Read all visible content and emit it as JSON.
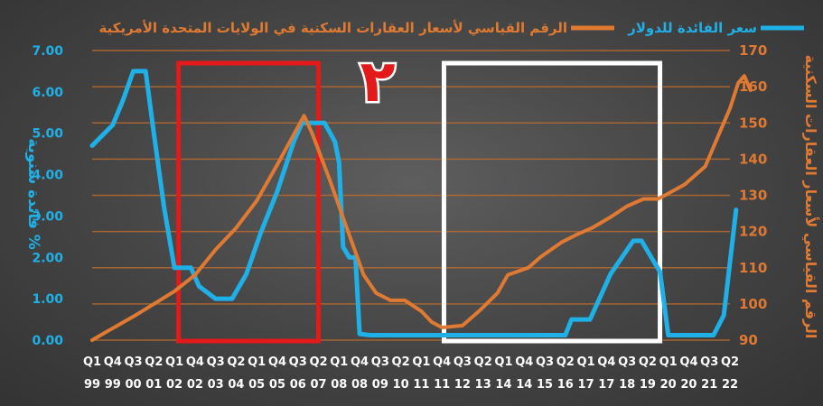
{
  "chart_data": {
    "type": "line",
    "legend": [
      {
        "label": "الرقم القياسي لأسعار العقارات السكنية في الولايات المتحدة الأمريكية",
        "color": "#e07a32"
      },
      {
        "label": "سعر الفائدة للدولار",
        "color": "#1fb0e8"
      }
    ],
    "annotation": "٢",
    "ylabel_left": "فائدة سنوية %",
    "ylabel_right": "الرقم القياسي لأسعار العقارات السكنية",
    "yticks_left": [
      "0.00",
      "1.00",
      "2.00",
      "3.00",
      "4.00",
      "5.00",
      "6.00",
      "7.00"
    ],
    "yticks_right": [
      "90",
      "100",
      "110",
      "120",
      "130",
      "140",
      "150",
      "160",
      "170"
    ],
    "ylim_left": [
      0,
      7
    ],
    "ylim_right": [
      90,
      170
    ],
    "x_tick_labels": [
      {
        "q": "Q1",
        "y": "99"
      },
      {
        "q": "Q4",
        "y": "99"
      },
      {
        "q": "Q3",
        "y": "00"
      },
      {
        "q": "Q2",
        "y": "01"
      },
      {
        "q": "Q1",
        "y": "02"
      },
      {
        "q": "Q4",
        "y": "02"
      },
      {
        "q": "Q3",
        "y": "03"
      },
      {
        "q": "Q2",
        "y": "04"
      },
      {
        "q": "Q1",
        "y": "05"
      },
      {
        "q": "Q4",
        "y": "05"
      },
      {
        "q": "Q3",
        "y": "06"
      },
      {
        "q": "Q2",
        "y": "07"
      },
      {
        "q": "Q1",
        "y": "08"
      },
      {
        "q": "Q4",
        "y": "08"
      },
      {
        "q": "Q3",
        "y": "09"
      },
      {
        "q": "Q2",
        "y": "10"
      },
      {
        "q": "Q1",
        "y": "11"
      },
      {
        "q": "Q4",
        "y": "11"
      },
      {
        "q": "Q3",
        "y": "12"
      },
      {
        "q": "Q2",
        "y": "13"
      },
      {
        "q": "Q1",
        "y": "14"
      },
      {
        "q": "Q4",
        "y": "14"
      },
      {
        "q": "Q3",
        "y": "15"
      },
      {
        "q": "Q2",
        "y": "16"
      },
      {
        "q": "Q1",
        "y": "17"
      },
      {
        "q": "Q4",
        "y": "17"
      },
      {
        "q": "Q3",
        "y": "18"
      },
      {
        "q": "Q2",
        "y": "19"
      },
      {
        "q": "Q1",
        "y": "20"
      },
      {
        "q": "Q4",
        "y": "20"
      },
      {
        "q": "Q3",
        "y": "21"
      },
      {
        "q": "Q2",
        "y": "22"
      }
    ],
    "highlight_ranges": [
      {
        "from": 4.2,
        "to": 11.0,
        "color": "#e41a1a"
      },
      {
        "from": 17.1,
        "to": 27.6,
        "color": "#ffffff"
      }
    ],
    "series": [
      {
        "axis": "left",
        "color": "#1fb0e8",
        "points": [
          [
            0,
            4.7
          ],
          [
            1,
            5.2
          ],
          [
            1.5,
            5.8
          ],
          [
            2,
            6.5
          ],
          [
            2.6,
            6.5
          ],
          [
            3,
            5.0
          ],
          [
            3.5,
            3.2
          ],
          [
            4,
            1.75
          ],
          [
            4.3,
            1.75
          ],
          [
            4.8,
            1.75
          ],
          [
            5.2,
            1.3
          ],
          [
            6,
            1.0
          ],
          [
            6.8,
            1.0
          ],
          [
            7.5,
            1.6
          ],
          [
            8.2,
            2.6
          ],
          [
            9,
            3.6
          ],
          [
            9.8,
            4.8
          ],
          [
            10.2,
            5.25
          ],
          [
            10.6,
            5.25
          ],
          [
            11.0,
            5.25
          ],
          [
            11.3,
            5.25
          ],
          [
            11.8,
            4.8
          ],
          [
            12,
            4.3
          ],
          [
            12.2,
            2.25
          ],
          [
            12.5,
            2.0
          ],
          [
            12.8,
            2.0
          ],
          [
            13.0,
            0.15
          ],
          [
            13.5,
            0.12
          ],
          [
            16.8,
            0.12
          ],
          [
            20,
            0.12
          ],
          [
            23.0,
            0.12
          ],
          [
            23.3,
            0.5
          ],
          [
            24.2,
            0.5
          ],
          [
            25.2,
            1.6
          ],
          [
            26.3,
            2.4
          ],
          [
            26.7,
            2.4
          ],
          [
            27.3,
            1.9
          ],
          [
            27.6,
            1.65
          ],
          [
            28.0,
            0.12
          ],
          [
            28.7,
            0.12
          ],
          [
            30.2,
            0.12
          ],
          [
            30.7,
            0.6
          ],
          [
            31.3,
            3.15
          ]
        ]
      },
      {
        "axis": "right",
        "color": "#e07a32",
        "points": [
          [
            0,
            90
          ],
          [
            0.6,
            92
          ],
          [
            2,
            96.5
          ],
          [
            3,
            100
          ],
          [
            4,
            103.5
          ],
          [
            5,
            108
          ],
          [
            6,
            115
          ],
          [
            7,
            121
          ],
          [
            8,
            128.5
          ],
          [
            9,
            138.5
          ],
          [
            10.3,
            152
          ],
          [
            10.7,
            147
          ],
          [
            11.5,
            135
          ],
          [
            12.5,
            119
          ],
          [
            13.2,
            108
          ],
          [
            13.8,
            103
          ],
          [
            14.5,
            101
          ],
          [
            15.2,
            101
          ],
          [
            16,
            98
          ],
          [
            16.5,
            95
          ],
          [
            17,
            93.5
          ],
          [
            18,
            94
          ],
          [
            18.8,
            98
          ],
          [
            19.7,
            103
          ],
          [
            20.2,
            108
          ],
          [
            21.2,
            110
          ],
          [
            21.8,
            113
          ],
          [
            22.8,
            117
          ],
          [
            23.5,
            119
          ],
          [
            24.3,
            121
          ],
          [
            25.2,
            124
          ],
          [
            26.0,
            127
          ],
          [
            26.8,
            129
          ],
          [
            27.5,
            129
          ],
          [
            28,
            130.5
          ],
          [
            28.8,
            133
          ],
          [
            29.8,
            138
          ],
          [
            30.4,
            146
          ],
          [
            31.0,
            154
          ],
          [
            31.4,
            161
          ],
          [
            31.7,
            163
          ],
          [
            32.0,
            159
          ]
        ]
      }
    ]
  }
}
